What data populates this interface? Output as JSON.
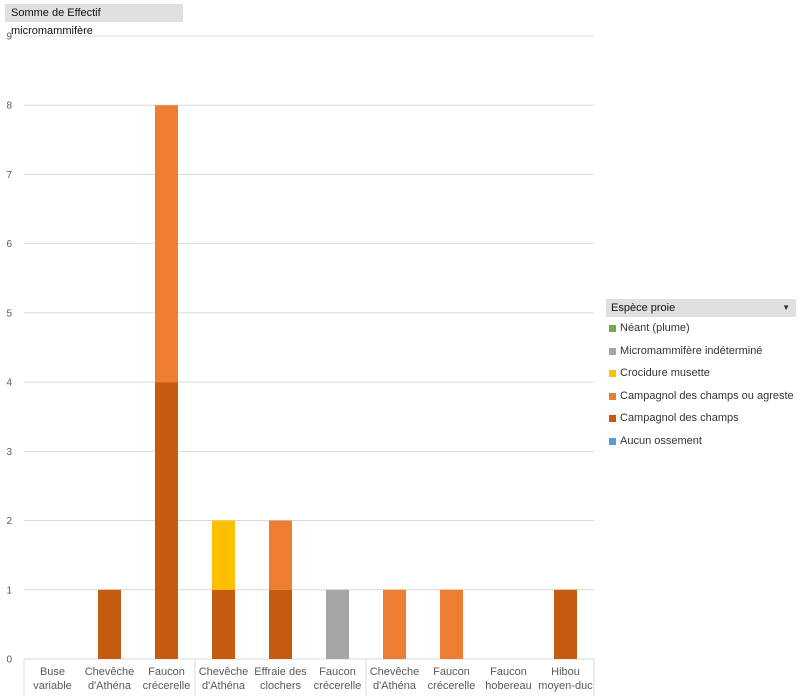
{
  "field_button": "Somme  de Effectif micromammifère",
  "legend": {
    "title": "Espèce proie",
    "items": [
      {
        "label": "Néant (plume)",
        "color": "#70ad47"
      },
      {
        "label": "Micromammifère indéterminé",
        "color": "#a5a5a5"
      },
      {
        "label": "Crocidure musette",
        "color": "#ffc000"
      },
      {
        "label": "Campagnol des champs ou agreste",
        "color": "#ed7d31"
      },
      {
        "label": "Campagnol des champs",
        "color": "#c55a11"
      },
      {
        "label": "Aucun ossement",
        "color": "#5b9bd5"
      }
    ]
  },
  "chart_data": {
    "type": "bar",
    "stacked": true,
    "categories": [
      [
        "Buse",
        "variable"
      ],
      [
        "Chevêche",
        "d'Athéna"
      ],
      [
        "Faucon",
        "crécerelle"
      ],
      [
        "Chevêche",
        "d'Athéna"
      ],
      [
        "Effraie des",
        "clochers"
      ],
      [
        "Faucon",
        "crécerelle"
      ],
      [
        "Chevêche",
        "d'Athéna"
      ],
      [
        "Faucon",
        "crécerelle"
      ],
      [
        "Faucon",
        "hobereau"
      ],
      [
        "Hibou",
        "moyen-duc"
      ]
    ],
    "series": [
      {
        "name": "Aucun ossement",
        "color": "#5b9bd5",
        "values": [
          0,
          0,
          0,
          0,
          0,
          0,
          0,
          0,
          0,
          0
        ]
      },
      {
        "name": "Campagnol des champs",
        "color": "#c55a11",
        "values": [
          0,
          1,
          4,
          1,
          1,
          0,
          0,
          0,
          0,
          1
        ]
      },
      {
        "name": "Campagnol des champs ou agreste",
        "color": "#ed7d31",
        "values": [
          0,
          0,
          4,
          0,
          1,
          0,
          1,
          1,
          0,
          0
        ]
      },
      {
        "name": "Crocidure musette",
        "color": "#ffc000",
        "values": [
          0,
          0,
          0,
          1,
          0,
          0,
          0,
          0,
          0,
          0
        ]
      },
      {
        "name": "Micromammifère indéterminé",
        "color": "#a5a5a5",
        "values": [
          0,
          0,
          0,
          0,
          0,
          1,
          0,
          0,
          0,
          0
        ]
      },
      {
        "name": "Néant (plume)",
        "color": "#70ad47",
        "values": [
          0,
          0,
          0,
          0,
          0,
          0,
          0,
          0,
          0,
          0
        ]
      }
    ],
    "ylim": [
      0,
      9
    ],
    "yticks": [
      "0",
      "1",
      "2",
      "3",
      "4",
      "5",
      "6",
      "7",
      "8",
      "9"
    ],
    "grid": true,
    "legend_position": "right"
  }
}
